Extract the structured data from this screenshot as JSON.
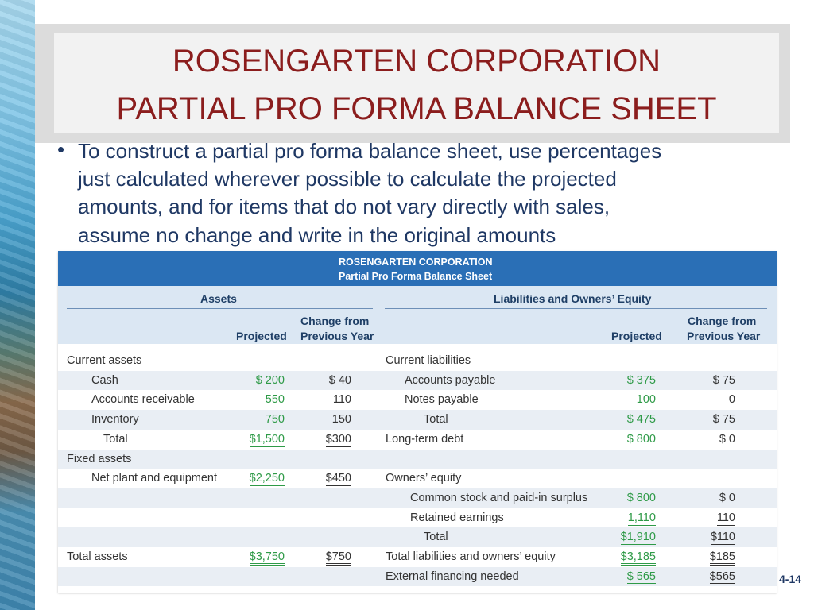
{
  "title": {
    "line1": "ROSENGARTEN CORPORATION",
    "line2": "PARTIAL PRO FORMA BALANCE SHEET"
  },
  "bullet": {
    "marker": "•",
    "lines": [
      "To construct a partial pro forma balance sheet, use percentages",
      "just calculated wherever possible to calculate the projected",
      "amounts, and for items that do not vary directly with sales,",
      "assume no change and write in the original amounts"
    ]
  },
  "table": {
    "company": "ROSENGARTEN CORPORATION",
    "subtitle": "Partial Pro Forma Balance Sheet",
    "assets_header": "Assets",
    "liab_header": "Liabilities and Owners’ Equity",
    "col_projected": "Projected",
    "col_change_1": "Change from",
    "col_change_2": "Previous Year",
    "left_rows": [
      {
        "label": "Current assets",
        "proj": "",
        "chg": ""
      },
      {
        "label": "Cash",
        "proj": "$   200",
        "chg": "$  40"
      },
      {
        "label": "Accounts receivable",
        "proj": "550",
        "chg": "110"
      },
      {
        "label": "Inventory",
        "proj": "750",
        "chg": "150"
      },
      {
        "label": "Total",
        "proj": "$1,500",
        "chg": "$300"
      },
      {
        "label": "Fixed assets",
        "proj": "",
        "chg": ""
      },
      {
        "label": "Net plant and equipment",
        "proj": "$2,250",
        "chg": "$450"
      },
      {
        "label": "",
        "proj": "",
        "chg": ""
      },
      {
        "label": "",
        "proj": "",
        "chg": ""
      },
      {
        "label": "",
        "proj": "",
        "chg": ""
      },
      {
        "label": "Total assets",
        "proj": "$3,750",
        "chg": "$750"
      },
      {
        "label": "",
        "proj": "",
        "chg": ""
      }
    ],
    "right_rows": [
      {
        "label": "Current liabilities",
        "proj": "",
        "chg": ""
      },
      {
        "label": "Accounts payable",
        "proj": "$   375",
        "chg": "$  75"
      },
      {
        "label": "Notes payable",
        "proj": "100",
        "chg": "0"
      },
      {
        "label": "Total",
        "proj": "$   475",
        "chg": "$  75"
      },
      {
        "label": "Long-term debt",
        "proj": "$   800",
        "chg": "$    0"
      },
      {
        "label": "",
        "proj": "",
        "chg": ""
      },
      {
        "label": "Owners’ equity",
        "proj": "",
        "chg": ""
      },
      {
        "label": "Common stock and paid-in surplus",
        "proj": "$   800",
        "chg": "$    0"
      },
      {
        "label": "Retained earnings",
        "proj": "1,110",
        "chg": "110"
      },
      {
        "label": "Total",
        "proj": "$1,910",
        "chg": "$110"
      },
      {
        "label": "Total liabilities and owners’ equity",
        "proj": "$3,185",
        "chg": "$185"
      },
      {
        "label": "External financing needed",
        "proj": "$   565",
        "chg": "$565"
      }
    ]
  },
  "page_number": "4-14"
}
